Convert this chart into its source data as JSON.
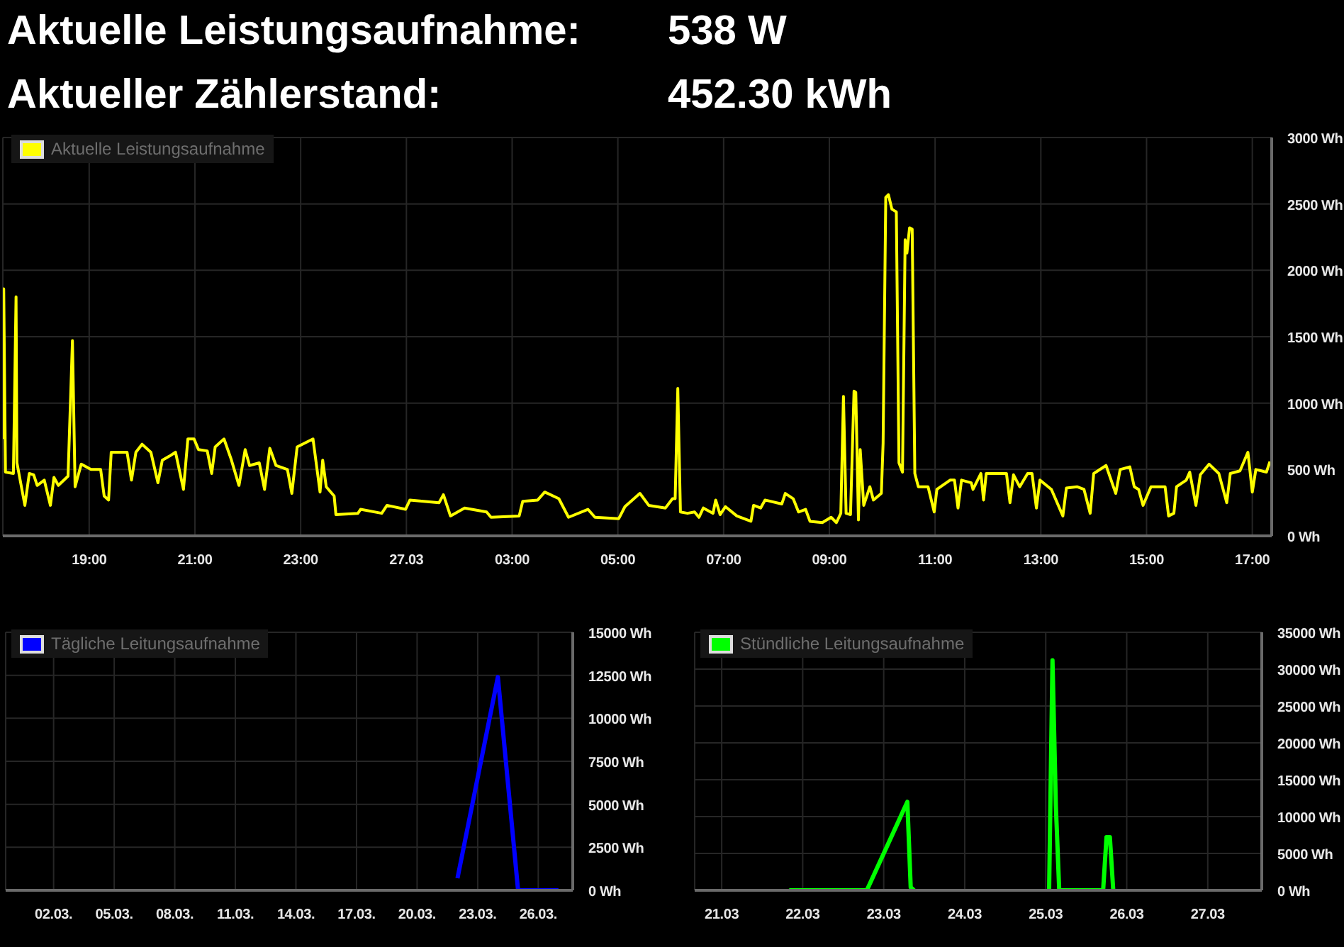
{
  "chart_data": [
    {
      "type": "other",
      "annotations": [
        "Aktuelle Leistungsaufnahme:",
        "538 W",
        "Aktueller Zählerstand:",
        "452.30 kWh"
      ]
    },
    {
      "type": "line",
      "grid": true,
      "legend": "top left",
      "xlim": [
        "--03-26T17:22",
        "--03-27T17:22"
      ],
      "ylim": [
        0,
        3000
      ],
      "xticks": [
        {
          "value": "--03-26T19:00",
          "label": "19:00"
        },
        {
          "value": "--03-26T21:00",
          "label": "21:00"
        },
        {
          "value": "--03-26T23:00",
          "label": "23:00"
        },
        {
          "value": "--03-27T01:00",
          "label": "27.03"
        },
        {
          "value": "--03-27T03:00",
          "label": "03:00"
        },
        {
          "value": "--03-27T05:00",
          "label": "05:00"
        },
        {
          "value": "--03-27T07:00",
          "label": "07:00"
        },
        {
          "value": "--03-27T09:00",
          "label": "09:00"
        },
        {
          "value": "--03-27T11:00",
          "label": "11:00"
        },
        {
          "value": "--03-27T13:00",
          "label": "13:00"
        },
        {
          "value": "--03-27T15:00",
          "label": "15:00"
        },
        {
          "value": "--03-27T17:00",
          "label": "17:00"
        }
      ],
      "yticks": [
        {
          "value": 0,
          "label": "0 Wh"
        },
        {
          "value": 500,
          "label": "500 Wh"
        },
        {
          "value": 1000,
          "label": "1000 Wh"
        },
        {
          "value": 1500,
          "label": "1500 Wh"
        },
        {
          "value": 2000,
          "label": "2000 Wh"
        },
        {
          "value": 2500,
          "label": "2500 Wh"
        },
        {
          "value": 3000,
          "label": "3000 Wh"
        }
      ],
      "series": [
        {
          "name": "Aktuelle Leistungsaufnahme",
          "color": "#ffff00",
          "x": [
            "--03-26T17:22",
            "--03-26T17:23",
            "--03-26T17:25",
            "--03-26T17:34",
            "--03-26T17:37",
            "--03-26T17:38",
            "--03-26T17:47",
            "--03-26T17:52",
            "--03-26T17:57",
            "--03-26T18:01",
            "--03-26T18:09",
            "--03-26T18:16",
            "--03-26T18:20",
            "--03-26T18:25",
            "--03-26T18:36",
            "--03-26T18:41",
            "--03-26T18:44",
            "--03-26T18:51",
            "--03-26T19:02",
            "--03-26T19:13",
            "--03-26T19:17",
            "--03-26T19:22",
            "--03-26T19:25",
            "--03-26T19:43",
            "--03-26T19:48",
            "--03-26T19:53",
            "--03-26T20:00",
            "--03-26T20:10",
            "--03-26T20:18",
            "--03-26T20:23",
            "--03-26T20:31",
            "--03-26T20:38",
            "--03-26T20:47",
            "--03-26T20:52",
            "--03-26T20:59",
            "--03-26T21:04",
            "--03-26T21:14",
            "--03-26T21:19",
            "--03-26T21:23",
            "--03-26T21:33",
            "--03-26T21:41",
            "--03-26T21:50",
            "--03-26T21:57",
            "--03-26T22:02",
            "--03-26T22:13",
            "--03-26T22:19",
            "--03-26T22:25",
            "--03-26T22:32",
            "--03-26T22:45",
            "--03-26T22:50",
            "--03-26T22:56",
            "--03-26T23:14",
            "--03-26T23:22",
            "--03-26T23:25",
            "--03-26T23:29",
            "--03-26T23:38",
            "--03-26T23:40",
            "--03-27T00:05",
            "--03-27T00:08",
            "--03-27T00:32",
            "--03-27T00:38",
            "--03-27T00:59",
            "--03-27T01:04",
            "--03-27T01:37",
            "--03-27T01:42",
            "--03-27T01:50",
            "--03-27T02:06",
            "--03-27T02:31",
            "--03-27T02:36",
            "--03-27T03:08",
            "--03-27T03:12",
            "--03-27T03:29",
            "--03-27T03:37",
            "--03-27T03:53",
            "--03-27T04:04",
            "--03-27T04:26",
            "--03-27T04:34",
            "--03-27T05:01",
            "--03-27T05:08",
            "--03-27T05:25",
            "--03-27T05:35",
            "--03-27T05:54",
            "--03-27T06:02",
            "--03-27T06:05",
            "--03-27T06:08",
            "--03-27T06:11",
            "--03-27T06:19",
            "--03-27T06:27",
            "--03-27T06:32",
            "--03-27T06:37",
            "--03-27T06:48",
            "--03-27T06:51",
            "--03-27T06:56",
            "--03-27T07:02",
            "--03-27T07:15",
            "--03-27T07:31",
            "--03-27T07:34",
            "--03-27T07:42",
            "--03-27T07:47",
            "--03-27T08:06",
            "--03-27T08:10",
            "--03-27T08:19",
            "--03-27T08:25",
            "--03-27T08:33",
            "--03-27T08:38",
            "--03-27T08:52",
            "--03-27T09:02",
            "--03-27T09:08",
            "--03-27T09:13",
            "--03-27T09:16",
            "--03-27T09:19",
            "--03-27T09:24",
            "--03-27T09:28",
            "--03-27T09:30",
            "--03-27T09:33",
            "--03-27T09:35",
            "--03-27T09:39",
            "--03-27T09:46",
            "--03-27T09:50",
            "--03-27T09:59",
            "--03-27T10:01",
            "--03-27T10:04",
            "--03-27T10:07",
            "--03-27T10:11",
            "--03-27T10:16",
            "--03-27T10:19",
            "--03-27T10:23",
            "--03-27T10:26",
            "--03-27T10:28",
            "--03-27T10:31",
            "--03-27T10:34",
            "--03-27T10:37",
            "--03-27T10:41",
            "--03-27T10:52",
            "--03-27T10:59",
            "--03-27T11:02",
            "--03-27T11:17",
            "--03-27T11:22",
            "--03-27T11:26",
            "--03-27T11:30",
            "--03-27T11:41",
            "--03-27T11:43",
            "--03-27T11:52",
            "--03-27T11:55",
            "--03-27T11:58",
            "--03-27T12:21",
            "--03-27T12:25",
            "--03-27T12:29",
            "--03-27T12:36",
            "--03-27T12:45",
            "--03-27T12:50",
            "--03-27T12:55",
            "--03-27T12:59",
            "--03-27T13:12",
            "--03-27T13:25",
            "--03-27T13:29",
            "--03-27T13:41",
            "--03-27T13:49",
            "--03-27T13:56",
            "--03-27T14:00",
            "--03-27T14:14",
            "--03-27T14:25",
            "--03-27T14:30",
            "--03-27T14:41",
            "--03-27T14:46",
            "--03-27T14:51",
            "--03-27T14:56",
            "--03-27T15:05",
            "--03-27T15:21",
            "--03-27T15:25",
            "--03-27T15:31",
            "--03-27T15:34",
            "--03-27T15:45",
            "--03-27T15:49",
            "--03-27T15:56",
            "--03-27T16:01",
            "--03-27T16:11",
            "--03-27T16:22",
            "--03-27T16:31",
            "--03-27T16:35",
            "--03-27T16:46",
            "--03-27T16:55",
            "--03-27T17:00",
            "--03-27T17:04",
            "--03-27T17:16",
            "--03-27T17:20"
          ],
          "values": [
            730,
            1860,
            480,
            470,
            1800,
            550,
            230,
            470,
            460,
            380,
            420,
            230,
            440,
            380,
            450,
            1470,
            370,
            540,
            500,
            500,
            300,
            270,
            630,
            630,
            420,
            630,
            690,
            630,
            400,
            570,
            600,
            630,
            350,
            730,
            730,
            650,
            640,
            470,
            670,
            730,
            580,
            380,
            650,
            530,
            550,
            350,
            660,
            530,
            500,
            320,
            670,
            730,
            330,
            570,
            370,
            300,
            160,
            170,
            200,
            170,
            230,
            200,
            270,
            250,
            310,
            150,
            210,
            180,
            140,
            150,
            260,
            270,
            330,
            280,
            140,
            200,
            140,
            130,
            220,
            320,
            230,
            210,
            280,
            280,
            1110,
            180,
            170,
            180,
            140,
            210,
            170,
            270,
            160,
            220,
            150,
            110,
            230,
            210,
            270,
            240,
            320,
            280,
            180,
            200,
            110,
            100,
            140,
            100,
            170,
            1050,
            170,
            160,
            1090,
            1080,
            120,
            650,
            230,
            370,
            270,
            320,
            700,
            2550,
            2570,
            2460,
            2440,
            550,
            480,
            2230,
            2130,
            2320,
            2310,
            470,
            370,
            370,
            180,
            350,
            420,
            420,
            210,
            420,
            400,
            350,
            470,
            270,
            470,
            470,
            250,
            460,
            370,
            470,
            470,
            210,
            420,
            350,
            150,
            360,
            370,
            350,
            170,
            470,
            530,
            320,
            500,
            520,
            370,
            350,
            230,
            370,
            370,
            150,
            170,
            370,
            420,
            480,
            230,
            460,
            540,
            470,
            250,
            470,
            490,
            630,
            330,
            500,
            480,
            560
          ]
        }
      ]
    },
    {
      "type": "line",
      "grid": true,
      "legend": "top left",
      "xlim": [
        "--02-27T15:00",
        "--03-27T17:00"
      ],
      "ylim": [
        0,
        15000
      ],
      "xticks": [
        {
          "value": "--03-02",
          "label": "02.03."
        },
        {
          "value": "--03-05",
          "label": "05.03."
        },
        {
          "value": "--03-08",
          "label": "08.03."
        },
        {
          "value": "--03-11",
          "label": "11.03."
        },
        {
          "value": "--03-14",
          "label": "14.03."
        },
        {
          "value": "--03-17",
          "label": "17.03."
        },
        {
          "value": "--03-20",
          "label": "20.03."
        },
        {
          "value": "--03-23",
          "label": "23.03."
        },
        {
          "value": "--03-26",
          "label": "26.03."
        }
      ],
      "yticks": [
        {
          "value": 0,
          "label": "0 Wh"
        },
        {
          "value": 2500,
          "label": "2500 Wh"
        },
        {
          "value": 5000,
          "label": "5000 Wh"
        },
        {
          "value": 7500,
          "label": "7500 Wh"
        },
        {
          "value": 10000,
          "label": "10000 Wh"
        },
        {
          "value": 12500,
          "label": "12500 Wh"
        },
        {
          "value": 15000,
          "label": "15000 Wh"
        }
      ],
      "series": [
        {
          "name": "Tägliche Leitungsaufnahme",
          "color": "#0000ff",
          "x": [
            "--03-22",
            "--03-24",
            "--03-25",
            "--03-26",
            "--03-27"
          ],
          "values": [
            700,
            12400,
            0,
            0,
            0
          ]
        }
      ]
    },
    {
      "type": "line",
      "grid": true,
      "legend": "top left",
      "xlim": [
        "--03-20T16:00",
        "--03-27T16:00"
      ],
      "ylim": [
        0,
        35000
      ],
      "xticks": [
        {
          "value": "--03-21",
          "label": "21.03"
        },
        {
          "value": "--03-22",
          "label": "22.03"
        },
        {
          "value": "--03-23",
          "label": "23.03"
        },
        {
          "value": "--03-24",
          "label": "24.03"
        },
        {
          "value": "--03-25",
          "label": "25.03"
        },
        {
          "value": "--03-26",
          "label": "26.03"
        },
        {
          "value": "--03-27",
          "label": "27.03"
        }
      ],
      "yticks": [
        {
          "value": 0,
          "label": "0 Wh"
        },
        {
          "value": 5000,
          "label": "5000 Wh"
        },
        {
          "value": 10000,
          "label": "10000 Wh"
        },
        {
          "value": 15000,
          "label": "15000 Wh"
        },
        {
          "value": 20000,
          "label": "20000 Wh"
        },
        {
          "value": 25000,
          "label": "25000 Wh"
        },
        {
          "value": 30000,
          "label": "30000 Wh"
        },
        {
          "value": 35000,
          "label": "35000 Wh"
        }
      ],
      "series": [
        {
          "name": "Stündliche Leitungsaufnahme",
          "color": "#00ff00",
          "x": [
            "--03-21T20:00",
            "--03-22T19:00",
            "--03-23T07:00",
            "--03-23T08:00",
            "--03-23T09:00",
            "--03-24T00:00",
            "--03-25T01:00",
            "--03-25T02:00",
            "--03-25T03:00",
            "--03-25T04:00",
            "--03-25T17:00",
            "--03-25T18:00",
            "--03-25T19:00",
            "--03-25T20:00"
          ],
          "values": [
            0,
            0,
            12000,
            400,
            0,
            null,
            0,
            31200,
            11400,
            0,
            0,
            7200,
            7200,
            0
          ]
        }
      ]
    }
  ]
}
